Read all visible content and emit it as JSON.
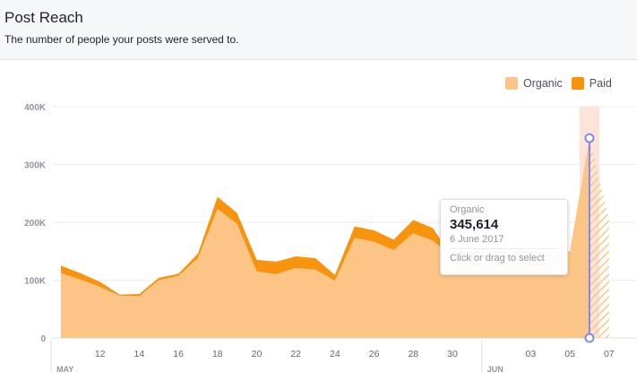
{
  "header": {
    "title": "Post Reach",
    "subtitle": "The number of people your posts were served to."
  },
  "legend": [
    {
      "label": "Organic",
      "color": "#fcc586"
    },
    {
      "label": "Paid",
      "color": "#f7930c"
    }
  ],
  "tooltip": {
    "series": "Organic",
    "value": "345,614",
    "date": "6 June 2017",
    "hint": "Click or drag to select"
  },
  "chart_data": {
    "type": "area",
    "stacked": true,
    "title": "Post Reach",
    "ylim": [
      0,
      400000
    ],
    "y_ticks": [
      {
        "value": 0,
        "label": "0"
      },
      {
        "value": 100000,
        "label": "100K"
      },
      {
        "value": 200000,
        "label": "200K"
      },
      {
        "value": 300000,
        "label": "300K"
      },
      {
        "value": 400000,
        "label": "400K"
      }
    ],
    "x_ticks": [
      {
        "date": "2017-05-12",
        "label": "12"
      },
      {
        "date": "2017-05-14",
        "label": "14"
      },
      {
        "date": "2017-05-16",
        "label": "16"
      },
      {
        "date": "2017-05-18",
        "label": "18"
      },
      {
        "date": "2017-05-20",
        "label": "20"
      },
      {
        "date": "2017-05-22",
        "label": "22"
      },
      {
        "date": "2017-05-24",
        "label": "24"
      },
      {
        "date": "2017-05-26",
        "label": "26"
      },
      {
        "date": "2017-05-28",
        "label": "28"
      },
      {
        "date": "2017-05-30",
        "label": "30"
      },
      {
        "date": "2017-06-03",
        "label": "03"
      },
      {
        "date": "2017-06-05",
        "label": "05"
      },
      {
        "date": "2017-06-07",
        "label": "07"
      }
    ],
    "months": [
      {
        "date": "2017-05-10",
        "label": "MAY"
      },
      {
        "date": "2017-06-01",
        "label": "JUN"
      }
    ],
    "x": [
      "2017-05-10",
      "2017-05-11",
      "2017-05-12",
      "2017-05-13",
      "2017-05-14",
      "2017-05-15",
      "2017-05-16",
      "2017-05-17",
      "2017-05-18",
      "2017-05-19",
      "2017-05-20",
      "2017-05-21",
      "2017-05-22",
      "2017-05-23",
      "2017-05-24",
      "2017-05-25",
      "2017-05-26",
      "2017-05-27",
      "2017-05-28",
      "2017-05-29",
      "2017-05-30",
      "2017-05-31",
      "2017-06-01",
      "2017-06-02",
      "2017-06-03",
      "2017-06-04",
      "2017-06-05",
      "2017-06-06",
      "2017-06-07"
    ],
    "series": [
      {
        "name": "Organic",
        "color": "#fcc586",
        "values": [
          112000,
          101000,
          88000,
          73000,
          72000,
          100000,
          107000,
          138000,
          223000,
          197000,
          115000,
          110000,
          121000,
          118000,
          99000,
          173000,
          166000,
          152000,
          181000,
          168000,
          140000,
          150000,
          155000,
          152000,
          150000,
          150000,
          150000,
          345614,
          205000
        ]
      },
      {
        "name": "Paid",
        "color": "#f7930c",
        "values": [
          13000,
          11000,
          9000,
          2000,
          4000,
          4000,
          4000,
          8000,
          21000,
          19000,
          20000,
          22000,
          20000,
          20000,
          10000,
          20000,
          20000,
          18000,
          23000,
          22000,
          0,
          0,
          0,
          0,
          0,
          0,
          0,
          0,
          0
        ]
      }
    ],
    "selected_date": "2017-06-06",
    "forecast_from": "2017-06-06"
  }
}
